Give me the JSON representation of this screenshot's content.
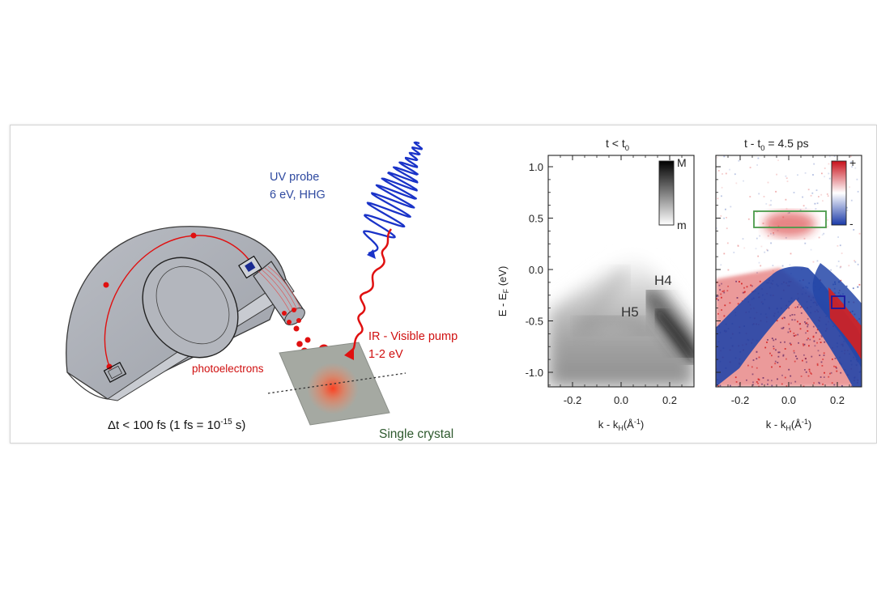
{
  "setup": {
    "uv_probe_line1": "UV probe",
    "uv_probe_line2": "6 eV, HHG",
    "pump_line1": "IR - Visible pump",
    "pump_line2": "1-2 eV",
    "photoelectrons": "photoelectrons",
    "delta_t_prefix": "Δt < 100 fs (1 fs = 10",
    "delta_t_exponent": "-15",
    "delta_t_suffix": " s)",
    "crystal": "Single crystal",
    "colors": {
      "uv": "#1a33c8",
      "pump": "#e01010",
      "uv_text": "#2f4aa0",
      "pump_text": "#d01010",
      "crystal_text": "#2f5a2f"
    }
  },
  "plot_left": {
    "title_main": "t < t",
    "title_sub": "0",
    "ylabel_main": "E - E",
    "ylabel_sub": "F",
    "ylabel_unit": " (eV)",
    "xlabel_main": "k - k",
    "xlabel_sub": "H",
    "xlabel_unit": "(Å",
    "xlabel_exp": "-1",
    "xlabel_close": ")",
    "y_ticks": [
      "1.0",
      "0.5",
      "0.0",
      "-0.5",
      "-1.0"
    ],
    "x_ticks": [
      "-0.2",
      "0.0",
      "0.2"
    ],
    "band_labels": [
      "H4",
      "H5"
    ],
    "colorbar_top": "M",
    "colorbar_bottom": "m"
  },
  "plot_right": {
    "title_main": "t - t",
    "title_sub": "0",
    "title_rest": " = 4.5 ps",
    "xlabel_main": "k - k",
    "xlabel_sub": "H",
    "xlabel_unit": "(Å",
    "xlabel_exp": "-1",
    "xlabel_close": ")",
    "x_ticks": [
      "-0.2",
      "0.0",
      "0.2"
    ],
    "colorbar_top": "+",
    "colorbar_bottom": "-",
    "colors": {
      "positive": "#d42020",
      "negative": "#2546a8",
      "roi_green": "#4a9a4a",
      "roi_blue": "#1a1aa0"
    }
  }
}
